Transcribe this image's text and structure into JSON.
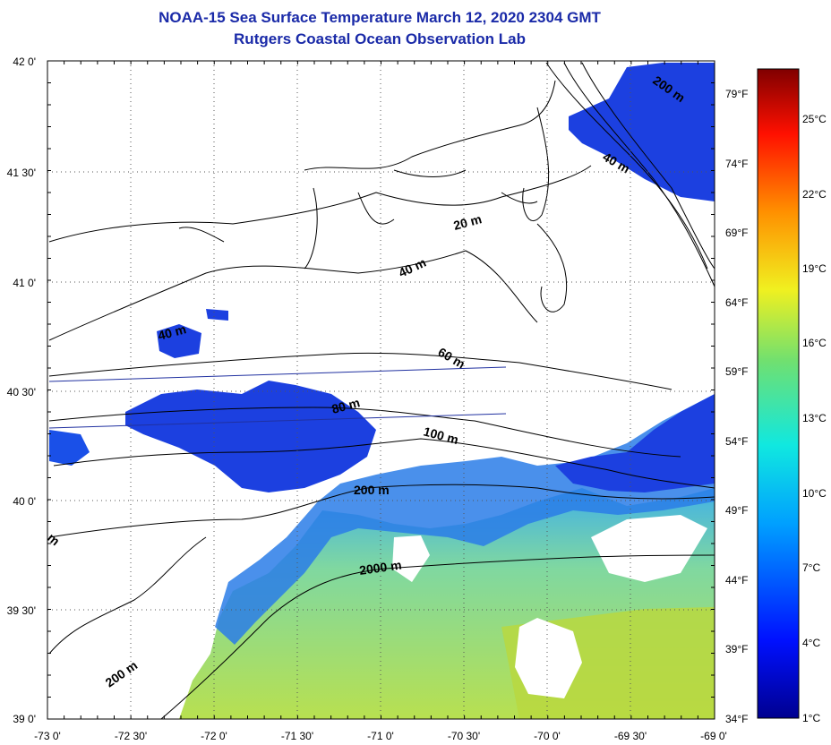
{
  "title_line1": "NOAA-15 Sea Surface Temperature March 12, 2020 2304 GMT",
  "title_line2": "Rutgers Coastal Ocean Observation Lab",
  "lat_labels": [
    "42 0'",
    "41 30'",
    "41 0'",
    "40 30'",
    "40 0'",
    "39 30'",
    "39 0'"
  ],
  "lon_labels": [
    "-73 0'",
    "-72 30'",
    "-72 0'",
    "-71 30'",
    "-71 0'",
    "-70 30'",
    "-70 0'",
    "-69 30'",
    "-69 0'"
  ],
  "fahrenheit_labels": [
    "79°F",
    "74°F",
    "69°F",
    "64°F",
    "59°F",
    "54°F",
    "49°F",
    "44°F",
    "39°F",
    "34°F"
  ],
  "celsius_labels": [
    "25°C",
    "22°C",
    "19°C",
    "16°C",
    "13°C",
    "10°C",
    "7°C",
    "4°C",
    "1°C"
  ],
  "depth_labels": [
    "200 m",
    "40 m",
    "20 m",
    "40 m",
    "40 m",
    "60 m",
    "80 m",
    "100 m",
    "200 m",
    "2000 m",
    "200 m",
    "m"
  ],
  "colors": {
    "title": "#1a2aa8",
    "cold_water": "#1c3ce6",
    "mid_water": "#1a8ee8",
    "warm_water": "#b0e060",
    "bathymetry": "#000000",
    "transect": "#2030a0"
  }
}
